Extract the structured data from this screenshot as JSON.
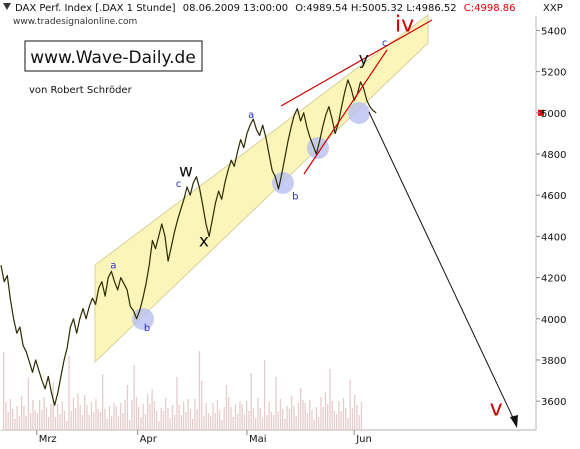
{
  "header": {
    "instrument": "DAX Perf. Index [.DAX  1 Stunde]",
    "datetime": "08.06.2009 13:00:00",
    "ohlc_prefix": "O:4989.54 H:5005.32 L:4986.52",
    "close": "C:4998.86",
    "source": "www.tradesignalonline.com",
    "axis_symbol": "XXP"
  },
  "branding": {
    "site": "www.Wave-Daily.de",
    "author": "von Robert Schröder"
  },
  "colors": {
    "price": "#2b2b00",
    "channel_fill": "#fbf5b9",
    "channel_edge": "#d8d29a",
    "close_text": "#e00000",
    "wave_label_major": "#d00000",
    "wave_label_minor": "#2a2ad0",
    "circle_fill": "#b8bff0",
    "trendline": "#d00000",
    "volume": "#e6cccc",
    "grid": "#e7e7e7"
  },
  "chart_data": {
    "type": "line",
    "title": "DAX Perf. Index [.DAX  1 Stunde]",
    "xlabel": "",
    "ylabel": "",
    "ylim": [
      3460,
      5470
    ],
    "y_ticks": [
      3600,
      3800,
      4000,
      4200,
      4400,
      4600,
      4800,
      5000,
      5200,
      5400
    ],
    "x_ticks": [
      "Mrz",
      "Apr",
      "Mai",
      "Jun"
    ],
    "x_tick_positions": [
      0,
      96,
      200,
      302
    ],
    "x_range": [
      -34,
      475
    ],
    "grid": false,
    "series": [
      {
        "type": "line",
        "points": [
          [
            -34,
            4260
          ],
          [
            -31,
            4180
          ],
          [
            -28,
            4210
          ],
          [
            -25,
            4090
          ],
          [
            -22,
            4000
          ],
          [
            -19,
            3930
          ],
          [
            -16,
            3960
          ],
          [
            -13,
            3870
          ],
          [
            -10,
            3840
          ],
          [
            -7,
            3790
          ],
          [
            -4,
            3740
          ],
          [
            -1,
            3800
          ],
          [
            2,
            3750
          ],
          [
            5,
            3700
          ],
          [
            8,
            3660
          ],
          [
            11,
            3720
          ],
          [
            14,
            3640
          ],
          [
            17,
            3580
          ],
          [
            20,
            3640
          ],
          [
            23,
            3720
          ],
          [
            26,
            3800
          ],
          [
            29,
            3860
          ],
          [
            32,
            3960
          ],
          [
            35,
            4000
          ],
          [
            38,
            3930
          ],
          [
            41,
            4000
          ],
          [
            44,
            4050
          ],
          [
            47,
            4000
          ],
          [
            50,
            4060
          ],
          [
            53,
            4100
          ],
          [
            56,
            4070
          ],
          [
            59,
            4150
          ],
          [
            62,
            4180
          ],
          [
            65,
            4110
          ],
          [
            68,
            4200
          ],
          [
            71,
            4230
          ],
          [
            74,
            4180
          ],
          [
            77,
            4140
          ],
          [
            80,
            4200
          ],
          [
            83,
            4170
          ],
          [
            86,
            4140
          ],
          [
            89,
            4060
          ],
          [
            92,
            4040
          ],
          [
            95,
            4000
          ],
          [
            98,
            4040
          ],
          [
            101,
            4100
          ],
          [
            104,
            4170
          ],
          [
            107,
            4260
          ],
          [
            110,
            4380
          ],
          [
            113,
            4340
          ],
          [
            116,
            4400
          ],
          [
            119,
            4460
          ],
          [
            122,
            4400
          ],
          [
            125,
            4280
          ],
          [
            128,
            4350
          ],
          [
            131,
            4420
          ],
          [
            134,
            4480
          ],
          [
            137,
            4530
          ],
          [
            140,
            4580
          ],
          [
            143,
            4640
          ],
          [
            146,
            4600
          ],
          [
            149,
            4660
          ],
          [
            152,
            4690
          ],
          [
            155,
            4630
          ],
          [
            158,
            4550
          ],
          [
            161,
            4460
          ],
          [
            164,
            4400
          ],
          [
            167,
            4480
          ],
          [
            170,
            4560
          ],
          [
            173,
            4620
          ],
          [
            176,
            4580
          ],
          [
            179,
            4660
          ],
          [
            182,
            4720
          ],
          [
            185,
            4770
          ],
          [
            188,
            4740
          ],
          [
            191,
            4810
          ],
          [
            194,
            4870
          ],
          [
            197,
            4830
          ],
          [
            200,
            4900
          ],
          [
            203,
            4940
          ],
          [
            206,
            4970
          ],
          [
            209,
            4920
          ],
          [
            212,
            4890
          ],
          [
            215,
            4940
          ],
          [
            218,
            4880
          ],
          [
            221,
            4800
          ],
          [
            224,
            4720
          ],
          [
            227,
            4690
          ],
          [
            230,
            4630
          ],
          [
            233,
            4700
          ],
          [
            236,
            4780
          ],
          [
            239,
            4860
          ],
          [
            242,
            4930
          ],
          [
            245,
            4990
          ],
          [
            248,
            5020
          ],
          [
            251,
            4960
          ],
          [
            254,
            5000
          ],
          [
            257,
            4930
          ],
          [
            260,
            4880
          ],
          [
            263,
            4840
          ],
          [
            266,
            4800
          ],
          [
            269,
            4860
          ],
          [
            272,
            4930
          ],
          [
            275,
            4990
          ],
          [
            278,
            5030
          ],
          [
            281,
            4970
          ],
          [
            284,
            4900
          ],
          [
            287,
            4950
          ],
          [
            290,
            5030
          ],
          [
            293,
            5100
          ],
          [
            296,
            5160
          ],
          [
            299,
            5120
          ],
          [
            302,
            5060
          ],
          [
            305,
            5090
          ],
          [
            308,
            5150
          ],
          [
            311,
            5120
          ],
          [
            314,
            5060
          ],
          [
            317,
            5030
          ],
          [
            320,
            5010
          ],
          [
            323,
            5000
          ]
        ]
      }
    ],
    "annotations": [
      {
        "text": "iv",
        "x": 350,
        "y": 5395,
        "role": "major"
      },
      {
        "text": "v",
        "x": 437,
        "y": 3530,
        "role": "major"
      },
      {
        "text": "w",
        "x": 142,
        "y": 4690,
        "role": "minor-black"
      },
      {
        "text": "x",
        "x": 159,
        "y": 4350,
        "role": "minor-black"
      },
      {
        "text": "y",
        "x": 311,
        "y": 5235,
        "role": "minor-black"
      },
      {
        "text": "a",
        "x": 73,
        "y": 4245,
        "role": "minor"
      },
      {
        "text": "b",
        "x": 105,
        "y": 3940,
        "role": "minor"
      },
      {
        "text": "c",
        "x": 135,
        "y": 4640,
        "role": "minor"
      },
      {
        "text": "a",
        "x": 204,
        "y": 4975,
        "role": "minor"
      },
      {
        "text": "b",
        "x": 246,
        "y": 4580,
        "role": "minor"
      },
      {
        "text": "c",
        "x": 331,
        "y": 5325,
        "role": "minor"
      }
    ]
  }
}
